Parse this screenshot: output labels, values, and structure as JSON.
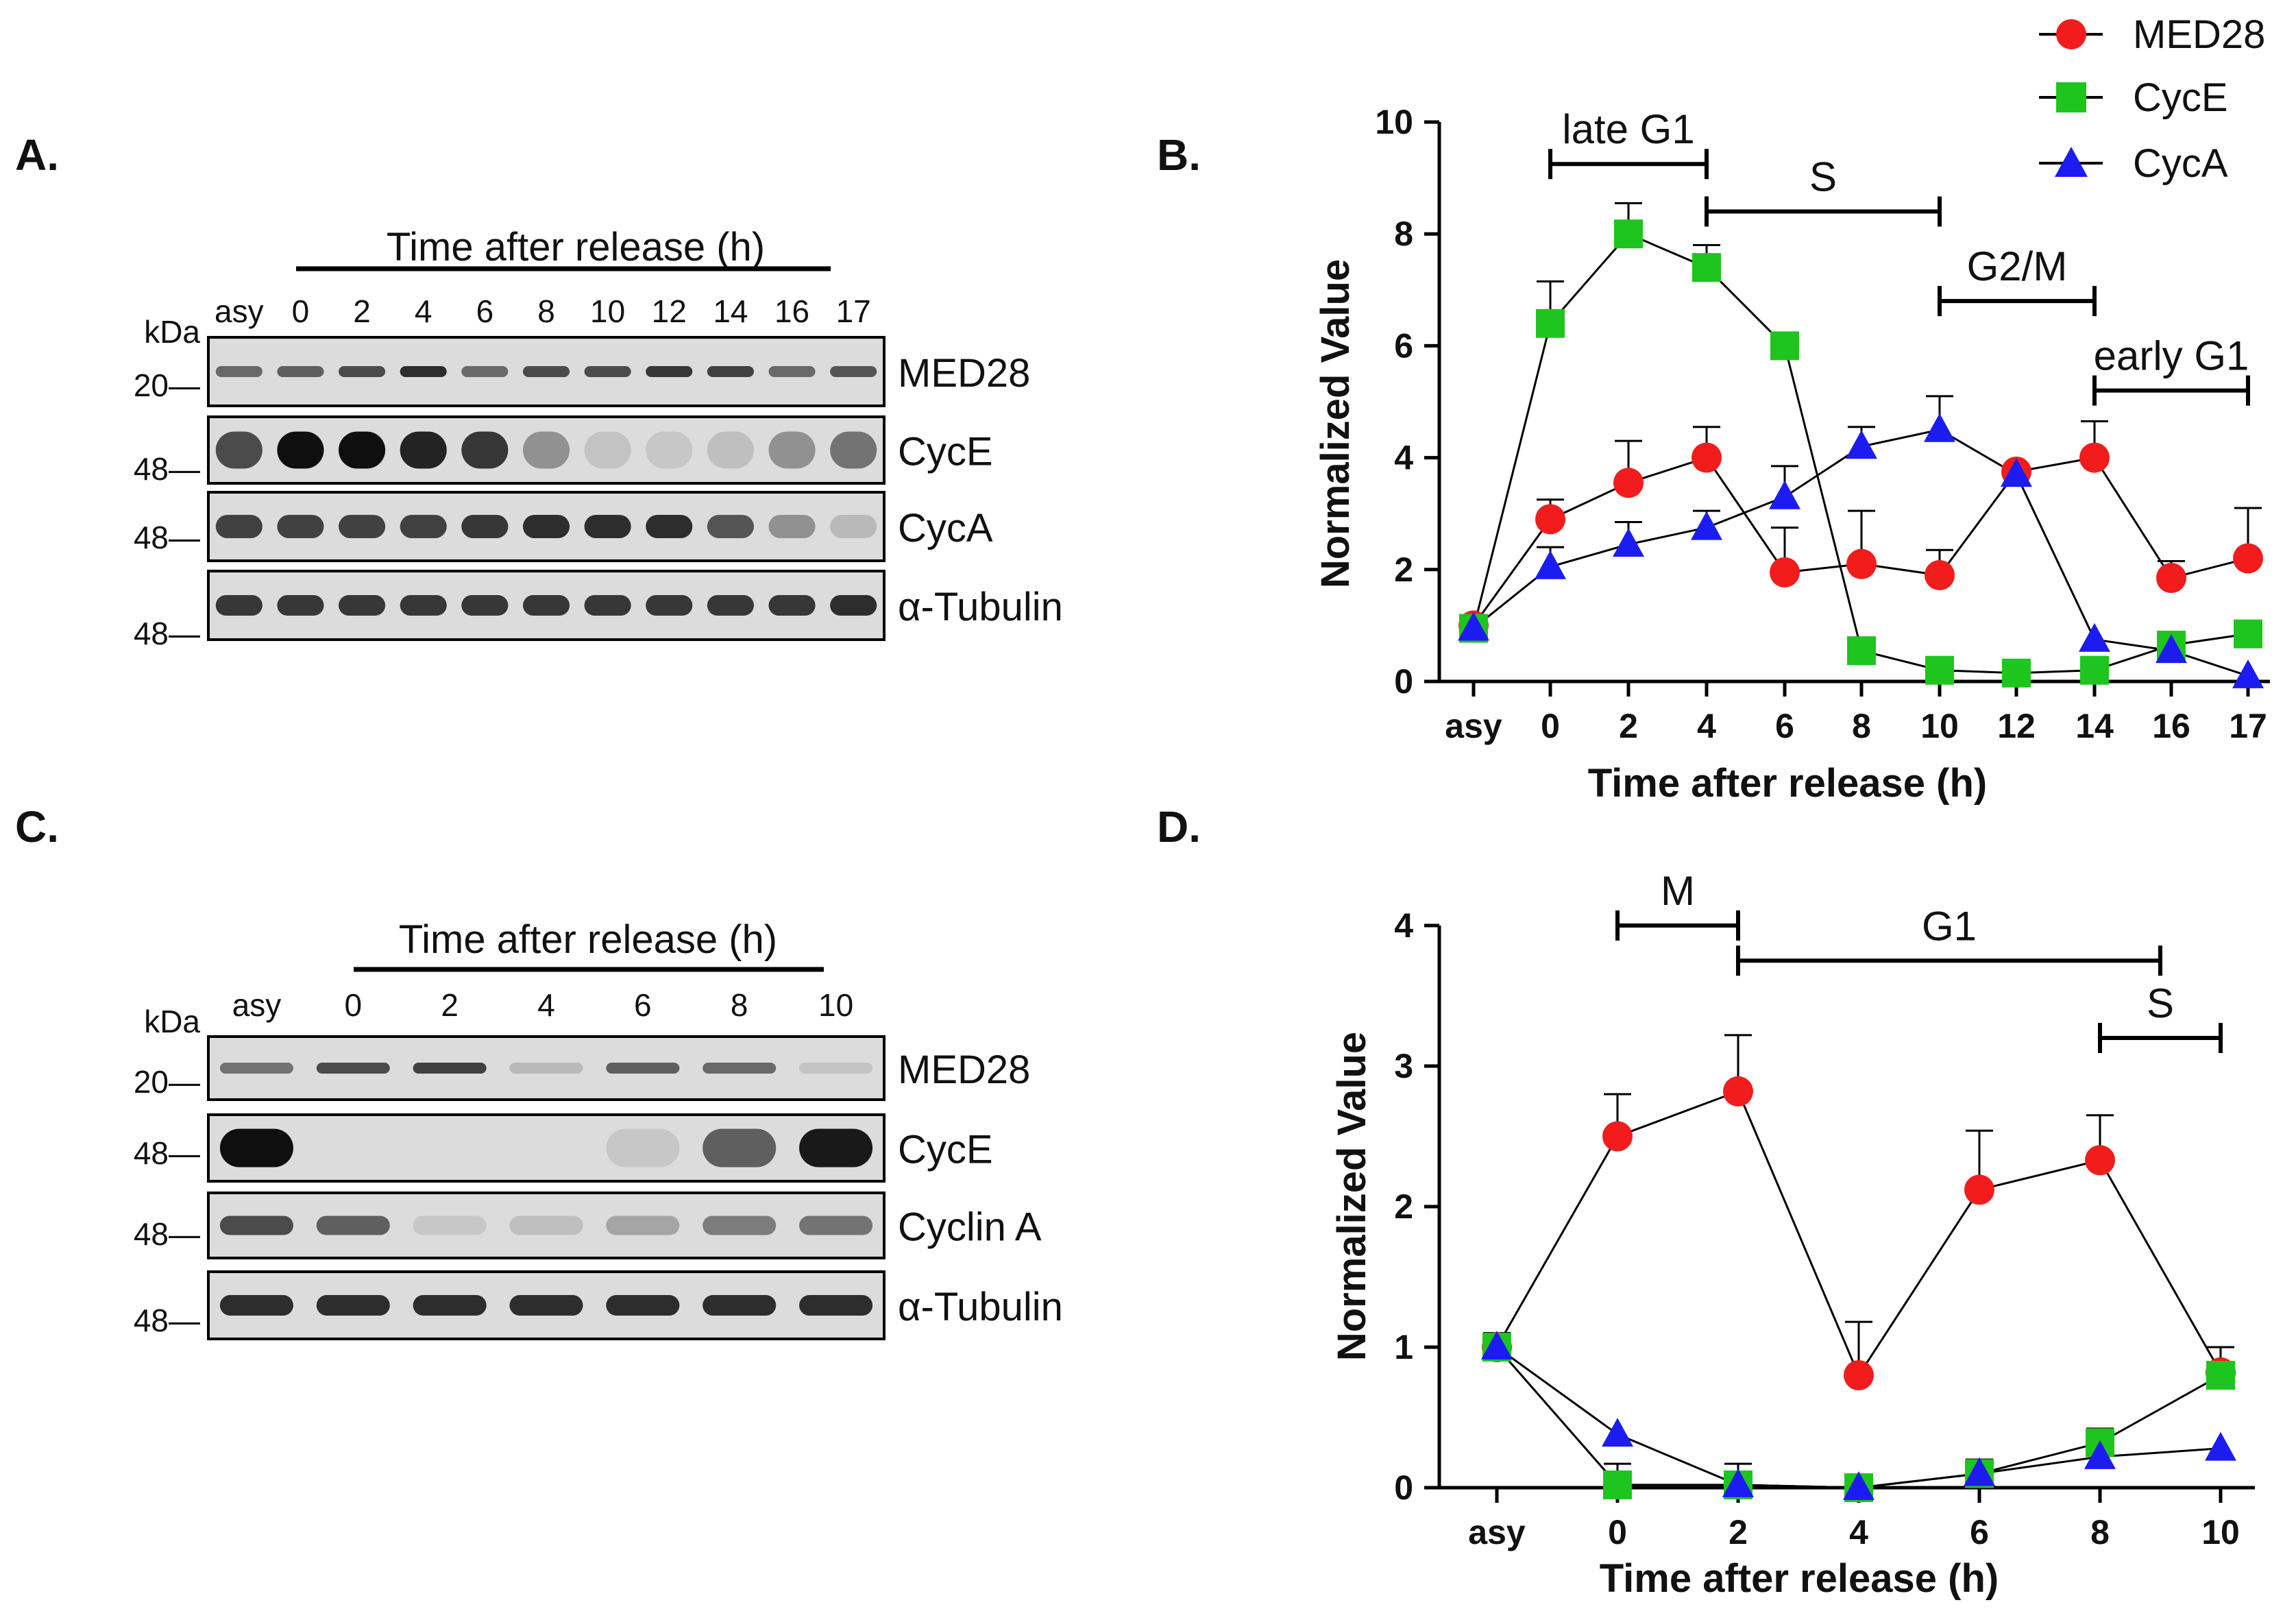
{
  "colors": {
    "med28": "#f21c1c",
    "cyce": "#1ec51e",
    "cyca": "#1c1cf2",
    "line": "#000000"
  },
  "panels": {
    "A": {
      "letter": "A.",
      "title": "Time after release (h)",
      "kda": "kDa",
      "lanes": [
        "asy",
        "0",
        "2",
        "4",
        "6",
        "8",
        "10",
        "12",
        "14",
        "16",
        "17"
      ],
      "markers": [
        "20—",
        "48—",
        "48—",
        "48—"
      ],
      "blots": [
        "MED28",
        "CycE",
        "CycA",
        "α-Tubulin"
      ],
      "intensity": [
        [
          0.55,
          0.6,
          0.7,
          0.85,
          0.55,
          0.7,
          0.7,
          0.8,
          0.75,
          0.55,
          0.65
        ],
        [
          0.7,
          1.0,
          1.0,
          0.9,
          0.8,
          0.35,
          0.1,
          0.08,
          0.12,
          0.35,
          0.5
        ],
        [
          0.75,
          0.75,
          0.75,
          0.75,
          0.8,
          0.85,
          0.85,
          0.85,
          0.65,
          0.35,
          0.15
        ],
        [
          0.8,
          0.8,
          0.8,
          0.8,
          0.8,
          0.8,
          0.8,
          0.8,
          0.8,
          0.8,
          0.85
        ]
      ]
    },
    "B": {
      "letter": "B."
    },
    "C": {
      "letter": "C.",
      "title": "Time after  release (h)",
      "kda": "kDa",
      "lanes": [
        "asy",
        "0",
        "2",
        "4",
        "6",
        "8",
        "10"
      ],
      "markers": [
        "20—",
        "48—",
        "48—",
        "48—"
      ],
      "blots": [
        "MED28",
        "CycE",
        "Cyclin A",
        "α-Tubulin"
      ],
      "intensity": [
        [
          0.5,
          0.7,
          0.75,
          0.15,
          0.6,
          0.55,
          0.1
        ],
        [
          1.0,
          0.0,
          0.0,
          0.0,
          0.08,
          0.6,
          0.95
        ],
        [
          0.7,
          0.6,
          0.08,
          0.12,
          0.25,
          0.45,
          0.5
        ],
        [
          0.85,
          0.85,
          0.85,
          0.85,
          0.85,
          0.85,
          0.85
        ]
      ]
    },
    "D": {
      "letter": "D."
    }
  },
  "legend": [
    "MED28",
    "CycE",
    "CycA"
  ],
  "chart_data": [
    {
      "type": "line",
      "title": "",
      "xlabel": "Time after release (h)",
      "ylabel": "Normalized Value",
      "ylim": [
        0,
        10
      ],
      "yticks": [
        "0",
        "2",
        "4",
        "6",
        "8",
        "10"
      ],
      "categories": [
        "asy",
        "0",
        "2",
        "4",
        "6",
        "8",
        "10",
        "12",
        "14",
        "16",
        "17"
      ],
      "series": [
        {
          "name": "MED28",
          "values": [
            1.0,
            2.9,
            3.55,
            4.0,
            1.95,
            2.1,
            1.9,
            3.75,
            4.0,
            1.85,
            2.2
          ],
          "errors": [
            0.1,
            0.35,
            0.75,
            0.55,
            0.8,
            0.95,
            0.45,
            0.0,
            0.65,
            0.3,
            0.9
          ]
        },
        {
          "name": "CycE",
          "values": [
            0.95,
            6.4,
            8.0,
            7.4,
            6.0,
            0.55,
            0.2,
            0.15,
            0.2,
            0.65,
            0.85
          ],
          "errors": [
            0.1,
            0.75,
            0.55,
            0.4,
            0.2,
            0.0,
            0.0,
            0.0,
            0.0,
            0.15,
            0.1
          ]
        },
        {
          "name": "CycA",
          "values": [
            0.95,
            2.05,
            2.45,
            2.75,
            3.3,
            4.2,
            4.5,
            3.7,
            0.75,
            0.55,
            0.1
          ],
          "errors": [
            0.1,
            0.35,
            0.4,
            0.3,
            0.55,
            0.35,
            0.6,
            0.0,
            0.0,
            0.0,
            0.0
          ]
        }
      ],
      "annotations": [
        {
          "text": "late G1",
          "from": 1,
          "to": 3,
          "level": 9.25
        },
        {
          "text": "S",
          "from": 3,
          "to": 6,
          "level": 8.4
        },
        {
          "text": "G2/M",
          "from": 6,
          "to": 8,
          "level": 6.8
        },
        {
          "text": "early G1",
          "from": 8,
          "to": 10,
          "level": 5.2
        }
      ]
    },
    {
      "type": "line",
      "title": "",
      "xlabel": "Time after release (h)",
      "ylabel": "Normalized Value",
      "ylim": [
        0,
        4
      ],
      "yticks": [
        "0",
        "1",
        "2",
        "3",
        "4"
      ],
      "categories": [
        "asy",
        "0",
        "2",
        "4",
        "6",
        "8",
        "10"
      ],
      "series": [
        {
          "name": "MED28",
          "values": [
            1.0,
            2.5,
            2.82,
            0.8,
            2.12,
            2.33,
            0.82
          ],
          "errors": [
            0.1,
            0.3,
            0.4,
            0.38,
            0.42,
            0.32,
            0.18
          ]
        },
        {
          "name": "CycE",
          "values": [
            1.0,
            0.02,
            0.02,
            0.0,
            0.1,
            0.32,
            0.8
          ],
          "errors": [
            0.1,
            0.15,
            0.15,
            0.0,
            0.1,
            0.1,
            0.2
          ]
        },
        {
          "name": "CycA",
          "values": [
            1.0,
            0.38,
            0.02,
            0.0,
            0.1,
            0.22,
            0.28
          ],
          "errors": [
            0.0,
            0.0,
            0.0,
            0.0,
            0.08,
            0.0,
            0.0
          ]
        }
      ],
      "annotations": [
        {
          "text": "M",
          "from": 1,
          "to": 2,
          "level": 4.0
        },
        {
          "text": "G1",
          "from": 2,
          "to": 5.5,
          "level": 3.75
        },
        {
          "text": "S",
          "from": 5,
          "to": 6,
          "level": 3.2
        }
      ]
    }
  ]
}
